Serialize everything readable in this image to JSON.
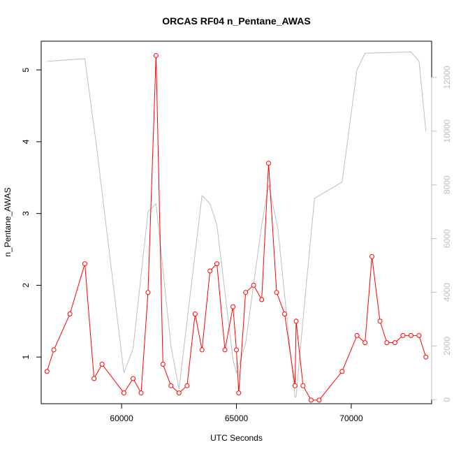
{
  "chart_data": {
    "type": "line",
    "title": "ORCAS RF04 n_Pentane_AWAS",
    "xlabel": "UTC Seconds",
    "ylabel": "n_Pentane_AWAS",
    "xlim": [
      56500,
      73500
    ],
    "ylim": [
      0.35,
      5.4
    ],
    "y2lim": [
      -150,
      13350
    ],
    "grid": false,
    "x_ticks": [
      60000,
      65000,
      70000
    ],
    "x_tick_labels": [
      "60000",
      "65000",
      "70000"
    ],
    "y_ticks": [
      1,
      2,
      3,
      4,
      5
    ],
    "y_tick_labels": [
      "1",
      "2",
      "3",
      "4",
      "5"
    ],
    "y2_ticks": [
      0,
      2000,
      4000,
      6000,
      8000,
      10000,
      12000
    ],
    "y2_tick_labels": [
      "0",
      "2000",
      "4000",
      "6000",
      "8000",
      "10000",
      "12000"
    ],
    "colors": {
      "primary": "#ff0000",
      "secondary": "#bebebe"
    },
    "series": [
      {
        "axis": "left",
        "style": "line-points",
        "color": "#ff0000",
        "x": [
          56750,
          57050,
          57750,
          58400,
          58800,
          59150,
          60100,
          60500,
          60850,
          61150,
          61500,
          61800,
          62150,
          62500,
          62850,
          63200,
          63500,
          63850,
          64150,
          64500,
          64850,
          65000,
          65100,
          65400,
          65750,
          66100,
          66400,
          66750,
          67100,
          67550,
          67600,
          67900,
          68250,
          68600,
          69600,
          70250,
          70600,
          70900,
          71250,
          71550,
          71900,
          72250,
          72600,
          72950,
          73250
        ],
        "y": [
          0.8,
          1.1,
          1.6,
          2.3,
          0.7,
          0.9,
          0.5,
          0.7,
          0.5,
          1.9,
          5.2,
          0.9,
          0.6,
          0.5,
          0.6,
          1.6,
          1.1,
          2.2,
          2.3,
          1.1,
          1.7,
          1.1,
          0.5,
          1.9,
          2.0,
          1.8,
          3.7,
          1.9,
          1.6,
          0.6,
          1.5,
          0.6,
          0.4,
          0.4,
          0.8,
          1.3,
          1.2,
          2.4,
          1.5,
          1.2,
          1.2,
          1.3,
          1.3,
          1.3,
          1.0
        ]
      },
      {
        "axis": "right",
        "style": "line",
        "color": "#bebebe",
        "x": [
          56750,
          58400,
          58900,
          60100,
          60500,
          61150,
          61500,
          62150,
          62500,
          63500,
          63850,
          64150,
          64850,
          65000,
          65400,
          66100,
          66400,
          66800,
          67550,
          67600,
          67900,
          68400,
          69600,
          70250,
          70600,
          72600,
          72950,
          73250
        ],
        "y": [
          12600,
          12700,
          9500,
          1000,
          1900,
          7000,
          7300,
          2000,
          400,
          7600,
          7300,
          6500,
          1500,
          1000,
          2100,
          6500,
          8000,
          6400,
          100,
          100,
          3000,
          7500,
          8100,
          12300,
          12900,
          12950,
          12600,
          10000
        ]
      }
    ]
  }
}
